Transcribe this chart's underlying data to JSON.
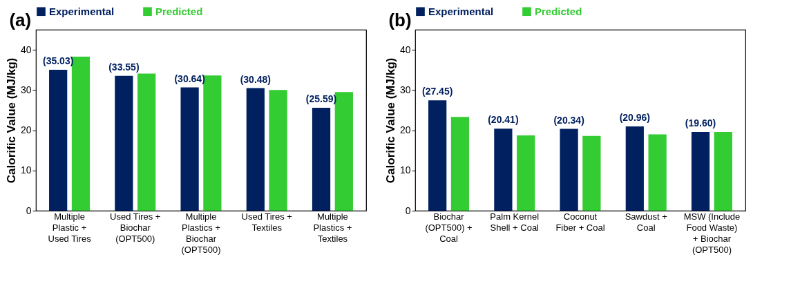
{
  "chart_data": [
    {
      "type": "bar",
      "title": "(a)",
      "ylabel": "Calorific Value (MJ/kg)",
      "categories": [
        "Multiple Plastic + Used Tires",
        "Used Tires + Biochar (OPT500)",
        "Multiple Plastics + Biochar (OPT500)",
        "Used Tires + Textiles",
        "Multiple Plastics + Textiles"
      ],
      "series": [
        {
          "name": "Experimental",
          "color": "#002060",
          "values": [
            35.03,
            33.55,
            30.64,
            30.48,
            25.59
          ],
          "value_labels": [
            "(35.03)",
            "(33.55)",
            "(30.64)",
            "(30.48)",
            "(25.59)"
          ]
        },
        {
          "name": "Predicted",
          "color": "#33cc33",
          "values": [
            38.3,
            34.1,
            33.6,
            30.0,
            29.5
          ]
        }
      ],
      "ylim": [
        0,
        45
      ],
      "yticks": [
        0,
        10,
        20,
        30,
        40
      ],
      "legend": "top"
    },
    {
      "type": "bar",
      "title": "(b)",
      "ylabel": "Calorific Value (MJ/kg)",
      "categories": [
        "Biochar (OPT500) + Coal",
        "Palm Kernel Shell + Coal",
        "Coconut Fiber + Coal",
        "Sawdust + Coal",
        "MSW (Include Food Waste) + Biochar (OPT500)"
      ],
      "series": [
        {
          "name": "Experimental",
          "color": "#002060",
          "values": [
            27.45,
            20.41,
            20.34,
            20.96,
            19.6
          ],
          "value_labels": [
            "(27.45)",
            "(20.41)",
            "(20.34)",
            "(20.96)",
            "(19.60)"
          ]
        },
        {
          "name": "Predicted",
          "color": "#33cc33",
          "values": [
            23.3,
            18.7,
            18.6,
            19.0,
            19.6
          ]
        }
      ],
      "ylim": [
        0,
        45
      ],
      "yticks": [
        0,
        10,
        20,
        30,
        40
      ],
      "legend": "top"
    }
  ]
}
